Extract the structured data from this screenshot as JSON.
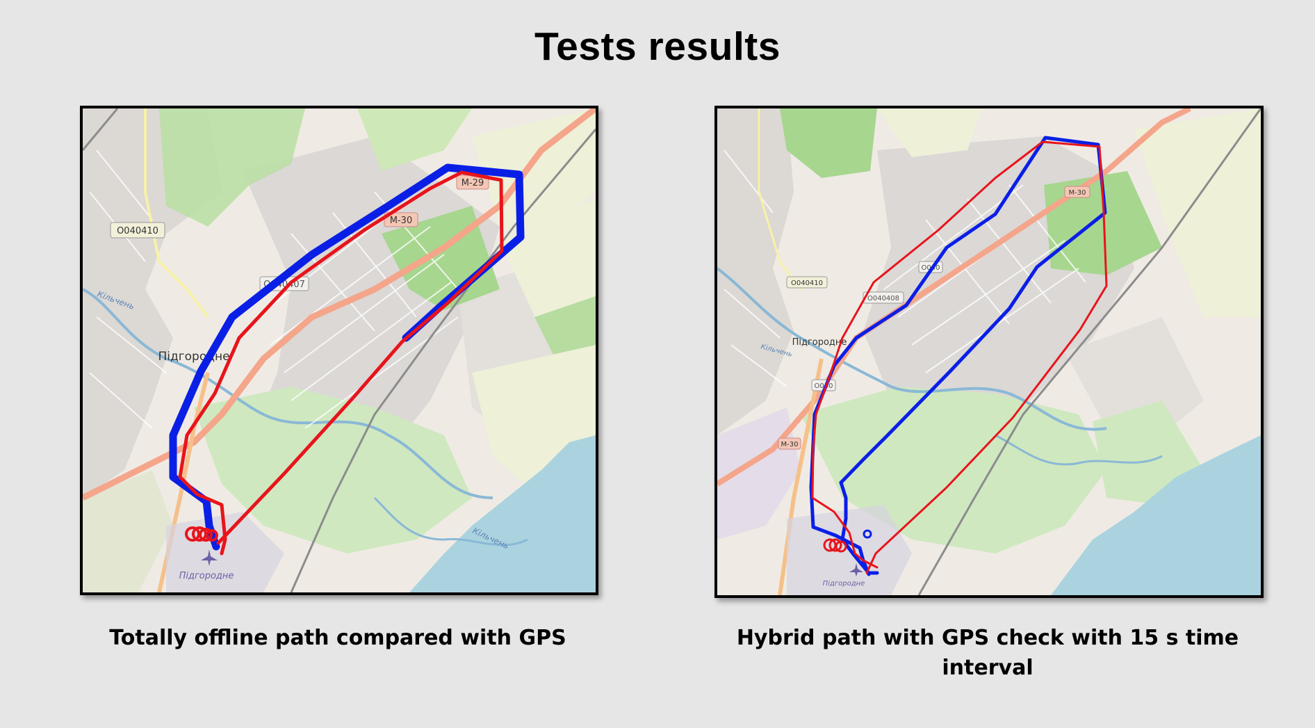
{
  "title": "Tests results",
  "colors": {
    "offline_path": "#e8141b",
    "gps_path": "#0a1fe6",
    "background": "#e6e6e6"
  },
  "left_panel": {
    "caption": "Totally offline path compared with GPS",
    "map_labels": {
      "road_m29": "M-29",
      "road_m30": "M-30",
      "road_o040410": "O040410",
      "road_o040407": "O040407",
      "town": "Підгородне",
      "river_1": "Кільчень",
      "river_2": "Кільчень",
      "airport": "Підгородне"
    }
  },
  "right_panel": {
    "caption": "Hybrid path with GPS check with 15 s time interval",
    "map_labels": {
      "road_m30_a": "M-30",
      "road_m30_b": "M-30",
      "road_o040410": "O040410",
      "road_o040408": "O040408",
      "road_o040_a": "O040",
      "road_o040_b": "O040",
      "town": "Підгородне",
      "river": "Кільчень",
      "airport": "Підгородне"
    }
  }
}
